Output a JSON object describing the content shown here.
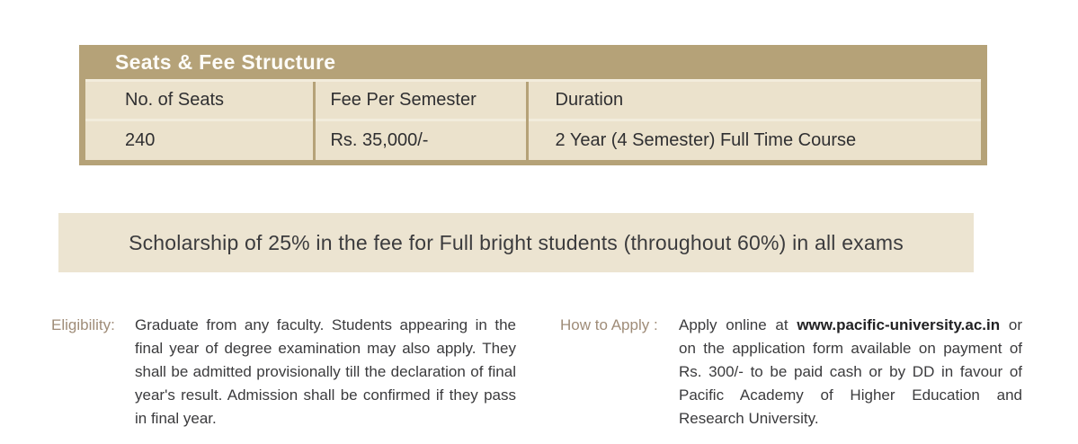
{
  "table": {
    "title": "Seats & Fee Structure",
    "columns": {
      "seats": "No. of Seats",
      "fee": "Fee Per Semester",
      "duration": "Duration"
    },
    "row": {
      "seats": "240",
      "fee": "Rs. 35,000/-",
      "duration": "2 Year (4 Semester) Full Time Course"
    }
  },
  "banner": {
    "text": "Scholarship of 25% in the fee for Full bright students (throughout 60%) in all exams"
  },
  "eligibility": {
    "label": "Eligibility:",
    "text": "Graduate from any faculty. Students appearing in the final year of degree examination may also apply. They shall be admitted provisionally till the declaration of final year's result. Admission shall be confirmed if they pass in final year."
  },
  "how_to_apply": {
    "label": "How to Apply :",
    "text_before": "Apply online at ",
    "website": "www.pacific-university.ac.in",
    "text_after": " or on the application form available on payment of Rs. 300/- to be paid cash or by DD in favour of Pacific Academy of Higher Education and Research University."
  },
  "colors": {
    "table_header_tan": "#b5a278",
    "cell_beige": "#ebe2cc",
    "banner_beige": "#ece4d1",
    "label_tan": "#9f8c78",
    "text_dark": "#3b3b3d",
    "title_white": "#fdfcf8"
  }
}
